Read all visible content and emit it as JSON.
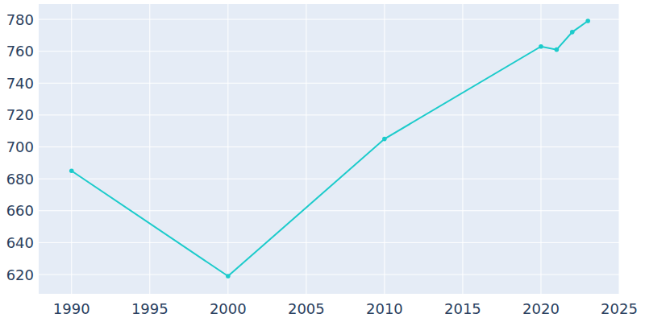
{
  "chart_data": {
    "type": "line",
    "x": [
      1990,
      2000,
      2010,
      2020,
      2021,
      2022,
      2023
    ],
    "values": [
      685,
      619,
      705,
      763,
      761,
      772,
      779
    ],
    "color": "#1ccbcb",
    "marker": "circle",
    "xlim": [
      1987.9,
      2025
    ],
    "ylim": [
      607.9,
      789.6
    ],
    "xticks": [
      1990,
      1995,
      2000,
      2005,
      2010,
      2015,
      2020,
      2025
    ],
    "yticks": [
      620,
      640,
      660,
      680,
      700,
      720,
      740,
      760,
      780
    ],
    "grid": true
  }
}
